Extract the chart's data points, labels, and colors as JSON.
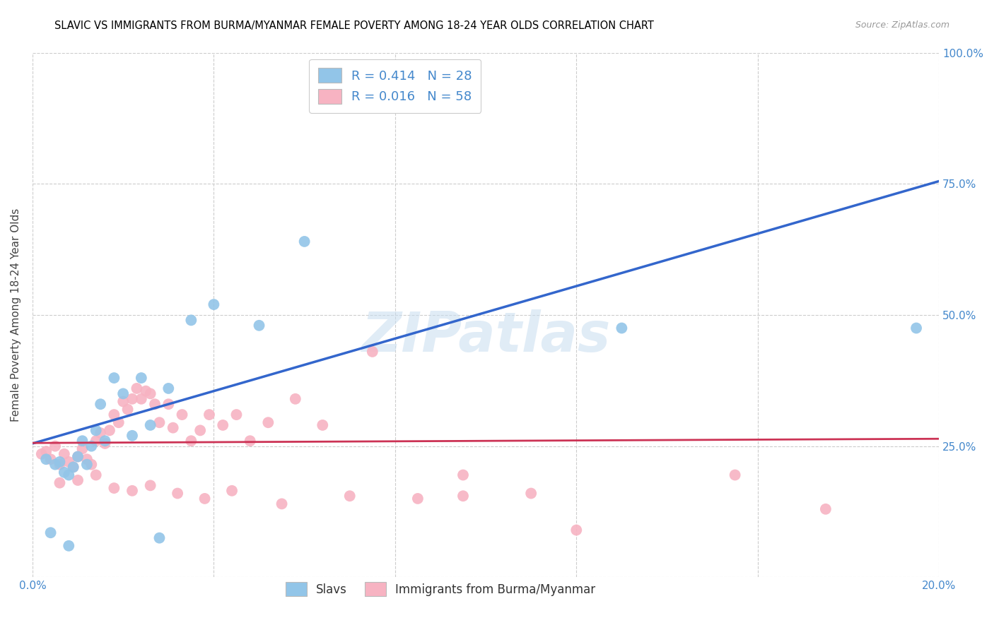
{
  "title": "SLAVIC VS IMMIGRANTS FROM BURMA/MYANMAR FEMALE POVERTY AMONG 18-24 YEAR OLDS CORRELATION CHART",
  "source": "Source: ZipAtlas.com",
  "ylabel": "Female Poverty Among 18-24 Year Olds",
  "x_min": 0.0,
  "x_max": 0.2,
  "y_min": 0.0,
  "y_max": 1.0,
  "x_ticks": [
    0.0,
    0.04,
    0.08,
    0.12,
    0.16,
    0.2
  ],
  "y_ticks": [
    0.0,
    0.25,
    0.5,
    0.75,
    1.0
  ],
  "y_tick_labels": [
    "",
    "25.0%",
    "50.0%",
    "75.0%",
    "100.0%"
  ],
  "legend_R1": "R = 0.414",
  "legend_N1": "N = 28",
  "legend_R2": "R = 0.016",
  "legend_N2": "N = 58",
  "color_blue": "#92c5e8",
  "color_pink": "#f7b3c2",
  "color_blue_line": "#3366cc",
  "color_pink_line": "#cc3355",
  "color_blue_text": "#4488cc",
  "watermark": "ZIPatlas",
  "slavs_line_x0": 0.0,
  "slavs_line_y0": 0.255,
  "slavs_line_x1": 0.2,
  "slavs_line_y1": 0.755,
  "burma_line_x0": 0.0,
  "burma_line_y0": 0.256,
  "burma_line_x1": 0.2,
  "burma_line_y1": 0.264,
  "slavs_x": [
    0.003,
    0.005,
    0.006,
    0.007,
    0.008,
    0.009,
    0.01,
    0.011,
    0.012,
    0.013,
    0.014,
    0.015,
    0.016,
    0.018,
    0.02,
    0.022,
    0.024,
    0.026,
    0.03,
    0.035,
    0.04,
    0.05,
    0.06,
    0.13,
    0.004,
    0.008,
    0.028,
    0.195
  ],
  "slavs_y": [
    0.225,
    0.215,
    0.22,
    0.2,
    0.195,
    0.21,
    0.23,
    0.26,
    0.215,
    0.25,
    0.28,
    0.33,
    0.26,
    0.38,
    0.35,
    0.27,
    0.38,
    0.29,
    0.36,
    0.49,
    0.52,
    0.48,
    0.64,
    0.475,
    0.085,
    0.06,
    0.075,
    0.475
  ],
  "burma_x": [
    0.002,
    0.003,
    0.004,
    0.005,
    0.006,
    0.007,
    0.008,
    0.009,
    0.01,
    0.011,
    0.012,
    0.013,
    0.014,
    0.015,
    0.016,
    0.017,
    0.018,
    0.019,
    0.02,
    0.021,
    0.022,
    0.023,
    0.024,
    0.025,
    0.026,
    0.027,
    0.028,
    0.03,
    0.031,
    0.033,
    0.035,
    0.037,
    0.039,
    0.042,
    0.045,
    0.048,
    0.052,
    0.058,
    0.064,
    0.075,
    0.006,
    0.01,
    0.014,
    0.018,
    0.022,
    0.026,
    0.032,
    0.038,
    0.044,
    0.055,
    0.07,
    0.085,
    0.095,
    0.11,
    0.155,
    0.175,
    0.12,
    0.095
  ],
  "burma_y": [
    0.235,
    0.24,
    0.225,
    0.25,
    0.215,
    0.235,
    0.22,
    0.21,
    0.23,
    0.245,
    0.225,
    0.215,
    0.26,
    0.275,
    0.255,
    0.28,
    0.31,
    0.295,
    0.335,
    0.32,
    0.34,
    0.36,
    0.34,
    0.355,
    0.35,
    0.33,
    0.295,
    0.33,
    0.285,
    0.31,
    0.26,
    0.28,
    0.31,
    0.29,
    0.31,
    0.26,
    0.295,
    0.34,
    0.29,
    0.43,
    0.18,
    0.185,
    0.195,
    0.17,
    0.165,
    0.175,
    0.16,
    0.15,
    0.165,
    0.14,
    0.155,
    0.15,
    0.155,
    0.16,
    0.195,
    0.13,
    0.09,
    0.195
  ]
}
